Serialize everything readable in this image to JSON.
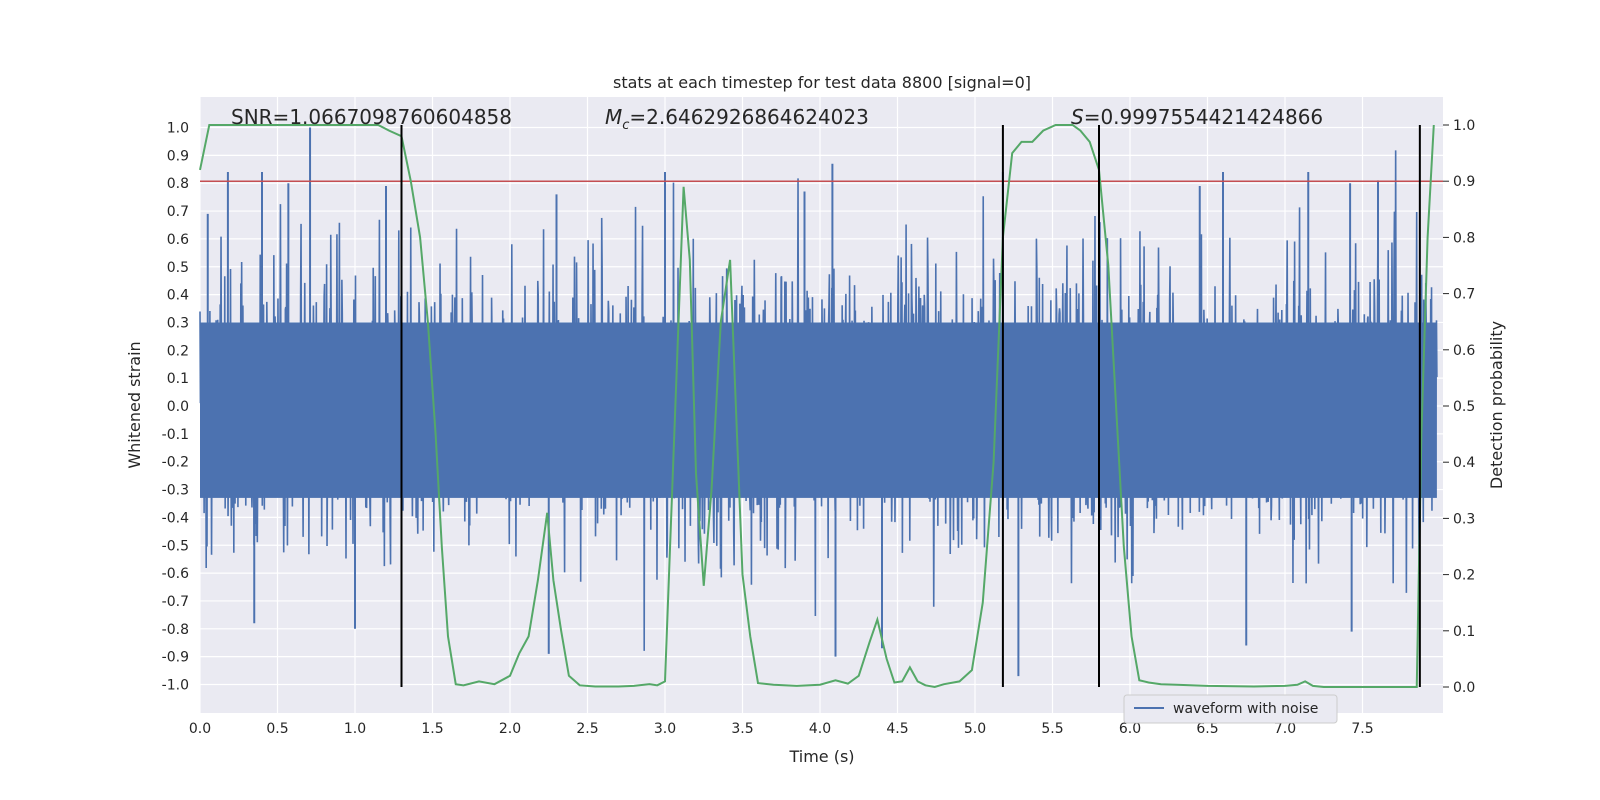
{
  "chart_data": {
    "type": "line",
    "title": "stats at each timestep for test data 8800 [signal=0]",
    "xlabel": "Time (s)",
    "ylabel": "Whitened strain",
    "y2label": "Detection probability",
    "xlim": [
      0.0,
      8.0
    ],
    "ylim": [
      -1.08,
      1.08
    ],
    "y2lim": [
      -0.05,
      1.05
    ],
    "xticks": [
      "0.0",
      "0.5",
      "1.0",
      "1.5",
      "2.0",
      "2.5",
      "3.0",
      "3.5",
      "4.0",
      "4.5",
      "5.0",
      "5.5",
      "6.0",
      "6.5",
      "7.0",
      "7.5"
    ],
    "yticks": [
      "1.0",
      "0.9",
      "0.8",
      "0.7",
      "0.6",
      "0.5",
      "0.4",
      "0.3",
      "0.2",
      "0.1",
      "0.0",
      "-0.1",
      "-0.2",
      "-0.3",
      "-0.4",
      "-0.5",
      "-0.6",
      "-0.7",
      "-0.8",
      "-0.9",
      "-1.0"
    ],
    "y2ticks": [
      "1.0",
      "0.9",
      "0.8",
      "0.7",
      "0.6",
      "0.5",
      "0.4",
      "0.3",
      "0.2",
      "0.1",
      "0.0"
    ],
    "threshold": 0.9,
    "threshold_color": "#c44e52",
    "waveform_color": "#4c72b0",
    "probability_color": "#55a868",
    "background_color": "#eaeaf2",
    "vertical_markers": [
      1.3,
      5.18,
      5.8,
      7.87
    ],
    "annotations": {
      "snr_prefix": "SNR=",
      "snr_value": "1.0667098760604858",
      "mc_symbol": "M",
      "mc_subscript": "c",
      "mc_value": "=2.6462926864624023",
      "s_symbol": "S",
      "s_value": "=0.9997554421424866"
    },
    "legend": [
      {
        "label": "waveform with noise",
        "color": "#4c72b0"
      }
    ],
    "waveform": {
      "name": "waveform with noise",
      "note": "noisy whitened strain, approx. range -0.97 to 1.0",
      "peaks_up": [
        [
          0.05,
          0.69
        ],
        [
          0.18,
          0.84
        ],
        [
          0.4,
          0.84
        ],
        [
          0.57,
          0.8
        ],
        [
          0.71,
          1.0
        ],
        [
          1.2,
          0.79
        ],
        [
          2.3,
          0.76
        ],
        [
          3.0,
          0.84
        ],
        [
          3.9,
          0.77
        ],
        [
          4.08,
          0.87
        ],
        [
          5.18,
          0.84
        ],
        [
          6.45,
          0.79
        ],
        [
          6.6,
          0.84
        ],
        [
          7.15,
          0.84
        ],
        [
          7.42,
          0.8
        ],
        [
          7.6,
          0.81
        ]
      ],
      "peaks_down": [
        [
          0.35,
          -0.78
        ],
        [
          1.0,
          -0.8
        ],
        [
          2.25,
          -0.89
        ],
        [
          4.1,
          -0.9
        ],
        [
          4.4,
          -0.87
        ],
        [
          5.28,
          -0.97
        ],
        [
          6.75,
          -0.86
        ],
        [
          7.43,
          -0.81
        ]
      ]
    },
    "probability": {
      "name": "detection probability",
      "x": [
        0.0,
        0.06,
        0.12,
        0.2,
        0.3,
        0.5,
        0.7,
        0.9,
        1.05,
        1.15,
        1.22,
        1.3,
        1.36,
        1.42,
        1.47,
        1.52,
        1.56,
        1.6,
        1.65,
        1.7,
        1.8,
        1.9,
        2.0,
        2.06,
        2.12,
        2.18,
        2.24,
        2.28,
        2.33,
        2.38,
        2.45,
        2.55,
        2.7,
        2.8,
        2.9,
        2.95,
        3.0,
        3.06,
        3.12,
        3.16,
        3.2,
        3.25,
        3.3,
        3.36,
        3.42,
        3.46,
        3.5,
        3.55,
        3.6,
        3.7,
        3.85,
        4.0,
        4.1,
        4.18,
        4.25,
        4.32,
        4.37,
        4.43,
        4.48,
        4.53,
        4.58,
        4.63,
        4.68,
        4.74,
        4.8,
        4.9,
        4.98,
        5.05,
        5.12,
        5.18,
        5.24,
        5.3,
        5.37,
        5.44,
        5.52,
        5.58,
        5.63,
        5.68,
        5.74,
        5.8,
        5.86,
        5.91,
        5.96,
        6.01,
        6.06,
        6.12,
        6.2,
        6.3,
        6.5,
        6.8,
        7.0,
        7.08,
        7.13,
        7.18,
        7.25,
        7.5,
        7.8,
        7.85,
        7.88,
        7.92,
        7.96
      ],
      "y": [
        0.92,
        1.0,
        1.0,
        1.0,
        1.0,
        1.0,
        1.0,
        1.0,
        1.0,
        1.0,
        0.99,
        0.98,
        0.9,
        0.8,
        0.65,
        0.45,
        0.25,
        0.09,
        0.005,
        0.003,
        0.01,
        0.005,
        0.02,
        0.06,
        0.09,
        0.19,
        0.31,
        0.19,
        0.1,
        0.02,
        0.003,
        0.001,
        0.001,
        0.002,
        0.005,
        0.003,
        0.01,
        0.45,
        0.89,
        0.76,
        0.38,
        0.18,
        0.35,
        0.65,
        0.76,
        0.48,
        0.2,
        0.09,
        0.007,
        0.004,
        0.002,
        0.004,
        0.012,
        0.006,
        0.02,
        0.08,
        0.12,
        0.05,
        0.008,
        0.01,
        0.035,
        0.01,
        0.003,
        0.0,
        0.005,
        0.01,
        0.03,
        0.15,
        0.4,
        0.8,
        0.95,
        0.97,
        0.97,
        0.99,
        1.0,
        1.0,
        1.0,
        0.99,
        0.97,
        0.92,
        0.75,
        0.5,
        0.25,
        0.09,
        0.012,
        0.008,
        0.005,
        0.004,
        0.002,
        0.001,
        0.002,
        0.004,
        0.01,
        0.002,
        0.0,
        0.0,
        0.0,
        0.0,
        0.45,
        0.8,
        1.0
      ]
    },
    "legend_position": "lower-right"
  }
}
